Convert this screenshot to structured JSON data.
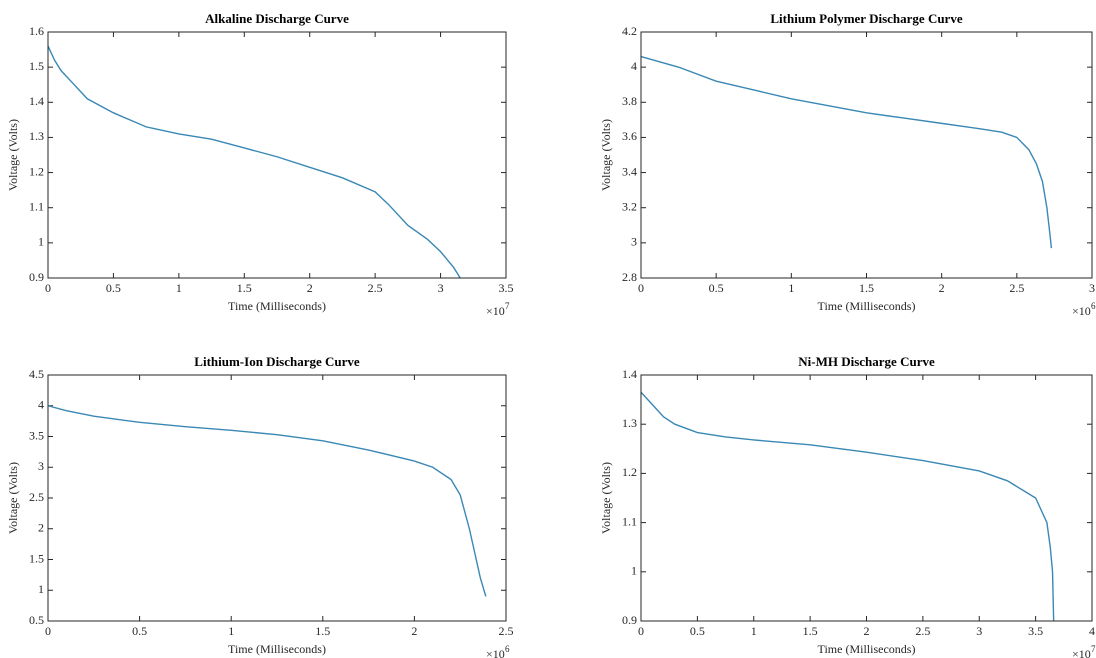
{
  "chart_data": [
    {
      "type": "line",
      "title": "Alkaline Discharge Curve",
      "x_label": "Time (Milliseconds)",
      "y_label": "Voltage (Volts)",
      "x_multiplier": "×10",
      "x_multiplier_power": "7",
      "color": "#3a88b5",
      "xlim": [
        0,
        3.5
      ],
      "xticks": [
        0,
        0.5,
        1,
        1.5,
        2,
        2.5,
        3,
        3.5
      ],
      "ylim": [
        0.9,
        1.6
      ],
      "yticks": [
        0.9,
        1,
        1.1,
        1.2,
        1.3,
        1.4,
        1.5,
        1.6
      ],
      "x": [
        0,
        0.05,
        0.1,
        0.2,
        0.3,
        0.5,
        0.75,
        1,
        1.25,
        1.5,
        1.75,
        2,
        2.25,
        2.5,
        2.6,
        2.75,
        2.9,
        3,
        3.1,
        3.15
      ],
      "values": [
        1.56,
        1.52,
        1.49,
        1.45,
        1.41,
        1.37,
        1.33,
        1.31,
        1.295,
        1.27,
        1.245,
        1.215,
        1.185,
        1.145,
        1.11,
        1.05,
        1.01,
        0.975,
        0.93,
        0.9
      ]
    },
    {
      "type": "line",
      "title": "Lithium Polymer Discharge Curve",
      "x_label": "Time (Milliseconds)",
      "y_label": "Voltage (Volts)",
      "x_multiplier": "×10",
      "x_multiplier_power": "6",
      "color": "#3a88b5",
      "xlim": [
        0,
        3
      ],
      "xticks": [
        0,
        0.5,
        1,
        1.5,
        2,
        2.5,
        3
      ],
      "ylim": [
        2.8,
        4.2
      ],
      "yticks": [
        2.8,
        3,
        3.2,
        3.4,
        3.6,
        3.8,
        4,
        4.2
      ],
      "x": [
        0,
        0.25,
        0.5,
        0.75,
        1,
        1.25,
        1.5,
        1.75,
        2,
        2.25,
        2.4,
        2.5,
        2.58,
        2.63,
        2.67,
        2.7,
        2.72,
        2.73
      ],
      "values": [
        4.06,
        4.0,
        3.92,
        3.87,
        3.82,
        3.78,
        3.74,
        3.71,
        3.68,
        3.65,
        3.63,
        3.6,
        3.53,
        3.45,
        3.35,
        3.2,
        3.05,
        2.97
      ]
    },
    {
      "type": "line",
      "title": "Lithium-Ion Discharge Curve",
      "x_label": "Time (Milliseconds)",
      "y_label": "Voltage (Volts)",
      "x_multiplier": "×10",
      "x_multiplier_power": "6",
      "color": "#3a88b5",
      "xlim": [
        0,
        2.5
      ],
      "xticks": [
        0,
        0.5,
        1,
        1.5,
        2,
        2.5
      ],
      "ylim": [
        0.5,
        4.5
      ],
      "yticks": [
        0.5,
        1,
        1.5,
        2,
        2.5,
        3,
        3.5,
        4,
        4.5
      ],
      "x": [
        0,
        0.1,
        0.25,
        0.5,
        0.75,
        1,
        1.25,
        1.5,
        1.75,
        2,
        2.1,
        2.2,
        2.25,
        2.3,
        2.33,
        2.36,
        2.39
      ],
      "values": [
        4.0,
        3.92,
        3.83,
        3.73,
        3.66,
        3.6,
        3.53,
        3.43,
        3.28,
        3.1,
        3.0,
        2.8,
        2.55,
        2.0,
        1.6,
        1.2,
        0.9
      ]
    },
    {
      "type": "line",
      "title": "Ni-MH Discharge Curve",
      "x_label": "Time (Milliseconds)",
      "y_label": "Voltage (Volts)",
      "x_multiplier": "×10",
      "x_multiplier_power": "7",
      "color": "#3a88b5",
      "xlim": [
        0,
        4
      ],
      "xticks": [
        0,
        0.5,
        1,
        1.5,
        2,
        2.5,
        3,
        3.5,
        4
      ],
      "ylim": [
        0.9,
        1.4
      ],
      "yticks": [
        0.9,
        1,
        1.1,
        1.2,
        1.3,
        1.4
      ],
      "x": [
        0,
        0.1,
        0.2,
        0.3,
        0.5,
        0.75,
        1,
        1.5,
        2,
        2.5,
        3,
        3.25,
        3.5,
        3.6,
        3.63,
        3.65,
        3.66
      ],
      "values": [
        1.365,
        1.34,
        1.315,
        1.3,
        1.283,
        1.274,
        1.268,
        1.258,
        1.243,
        1.226,
        1.205,
        1.185,
        1.15,
        1.1,
        1.05,
        1.0,
        0.9
      ]
    }
  ]
}
